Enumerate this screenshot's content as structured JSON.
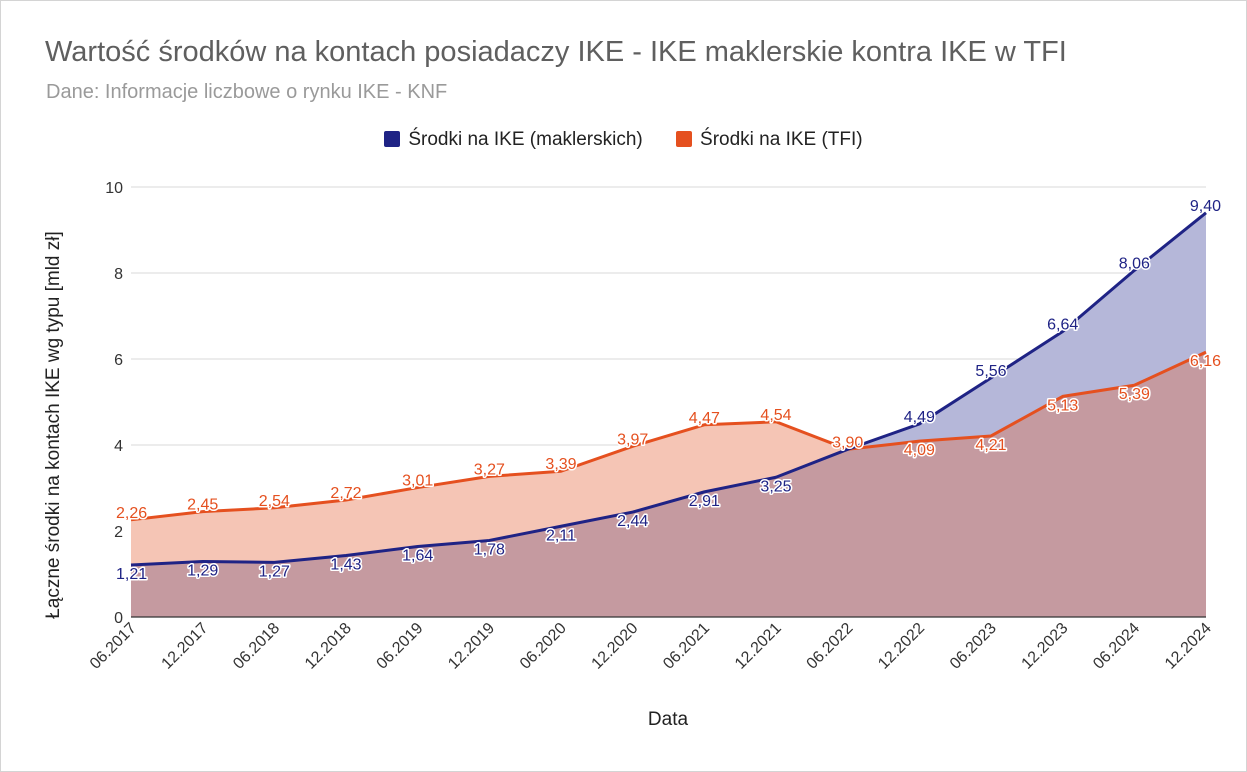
{
  "title": "Wartość środków na kontach posiadaczy IKE - IKE maklerskie kontra IKE w TFI",
  "subtitle": "Dane: Informacje liczbowe o rynku IKE - KNF",
  "chart_data": {
    "type": "area",
    "categories": [
      "06.2017",
      "12.2017",
      "06.2018",
      "12.2018",
      "06.2019",
      "12.2019",
      "06.2020",
      "12.2020",
      "06.2021",
      "12.2021",
      "06.2022",
      "12.2022",
      "06.2023",
      "12.2023",
      "06.2024",
      "12.2024"
    ],
    "series": [
      {
        "name": "Środki na IKE (maklerskich)",
        "color": "#1f2385",
        "fill": "#b5b7d9",
        "values": [
          1.21,
          1.29,
          1.27,
          1.43,
          1.64,
          1.78,
          2.11,
          2.44,
          2.91,
          3.25,
          3.9,
          4.49,
          5.56,
          6.64,
          8.06,
          9.4
        ],
        "labels": [
          "1,21",
          "1,29",
          "1,27",
          "1,43",
          "1,64",
          "1,78",
          "2,11",
          "2,44",
          "2,91",
          "3,25",
          "",
          "4,49",
          "5,56",
          "6,64",
          "8,06",
          "9,40"
        ]
      },
      {
        "name": "Środki na IKE (TFI)",
        "color": "#e5501f",
        "fill": "#f5c5b5",
        "values": [
          2.26,
          2.45,
          2.54,
          2.72,
          3.01,
          3.27,
          3.39,
          3.97,
          4.47,
          4.54,
          3.9,
          4.09,
          4.21,
          5.13,
          5.39,
          6.16
        ],
        "labels": [
          "2,26",
          "2,45",
          "2,54",
          "2,72",
          "3,01",
          "3,27",
          "3,39",
          "3,97",
          "4,47",
          "4,54",
          "3,90",
          "4,09",
          "4,21",
          "5,13",
          "5,39",
          "6,16"
        ]
      }
    ],
    "overlap_fill": "#c59aa0",
    "xlabel": "Data",
    "ylabel": "Łączne środki na kontach IKE wg typu [mld zł]",
    "ylim": [
      0,
      10
    ],
    "yticks": [
      "0",
      "2",
      "4",
      "6",
      "8",
      "10"
    ],
    "grid": true,
    "legend_position": "top"
  }
}
